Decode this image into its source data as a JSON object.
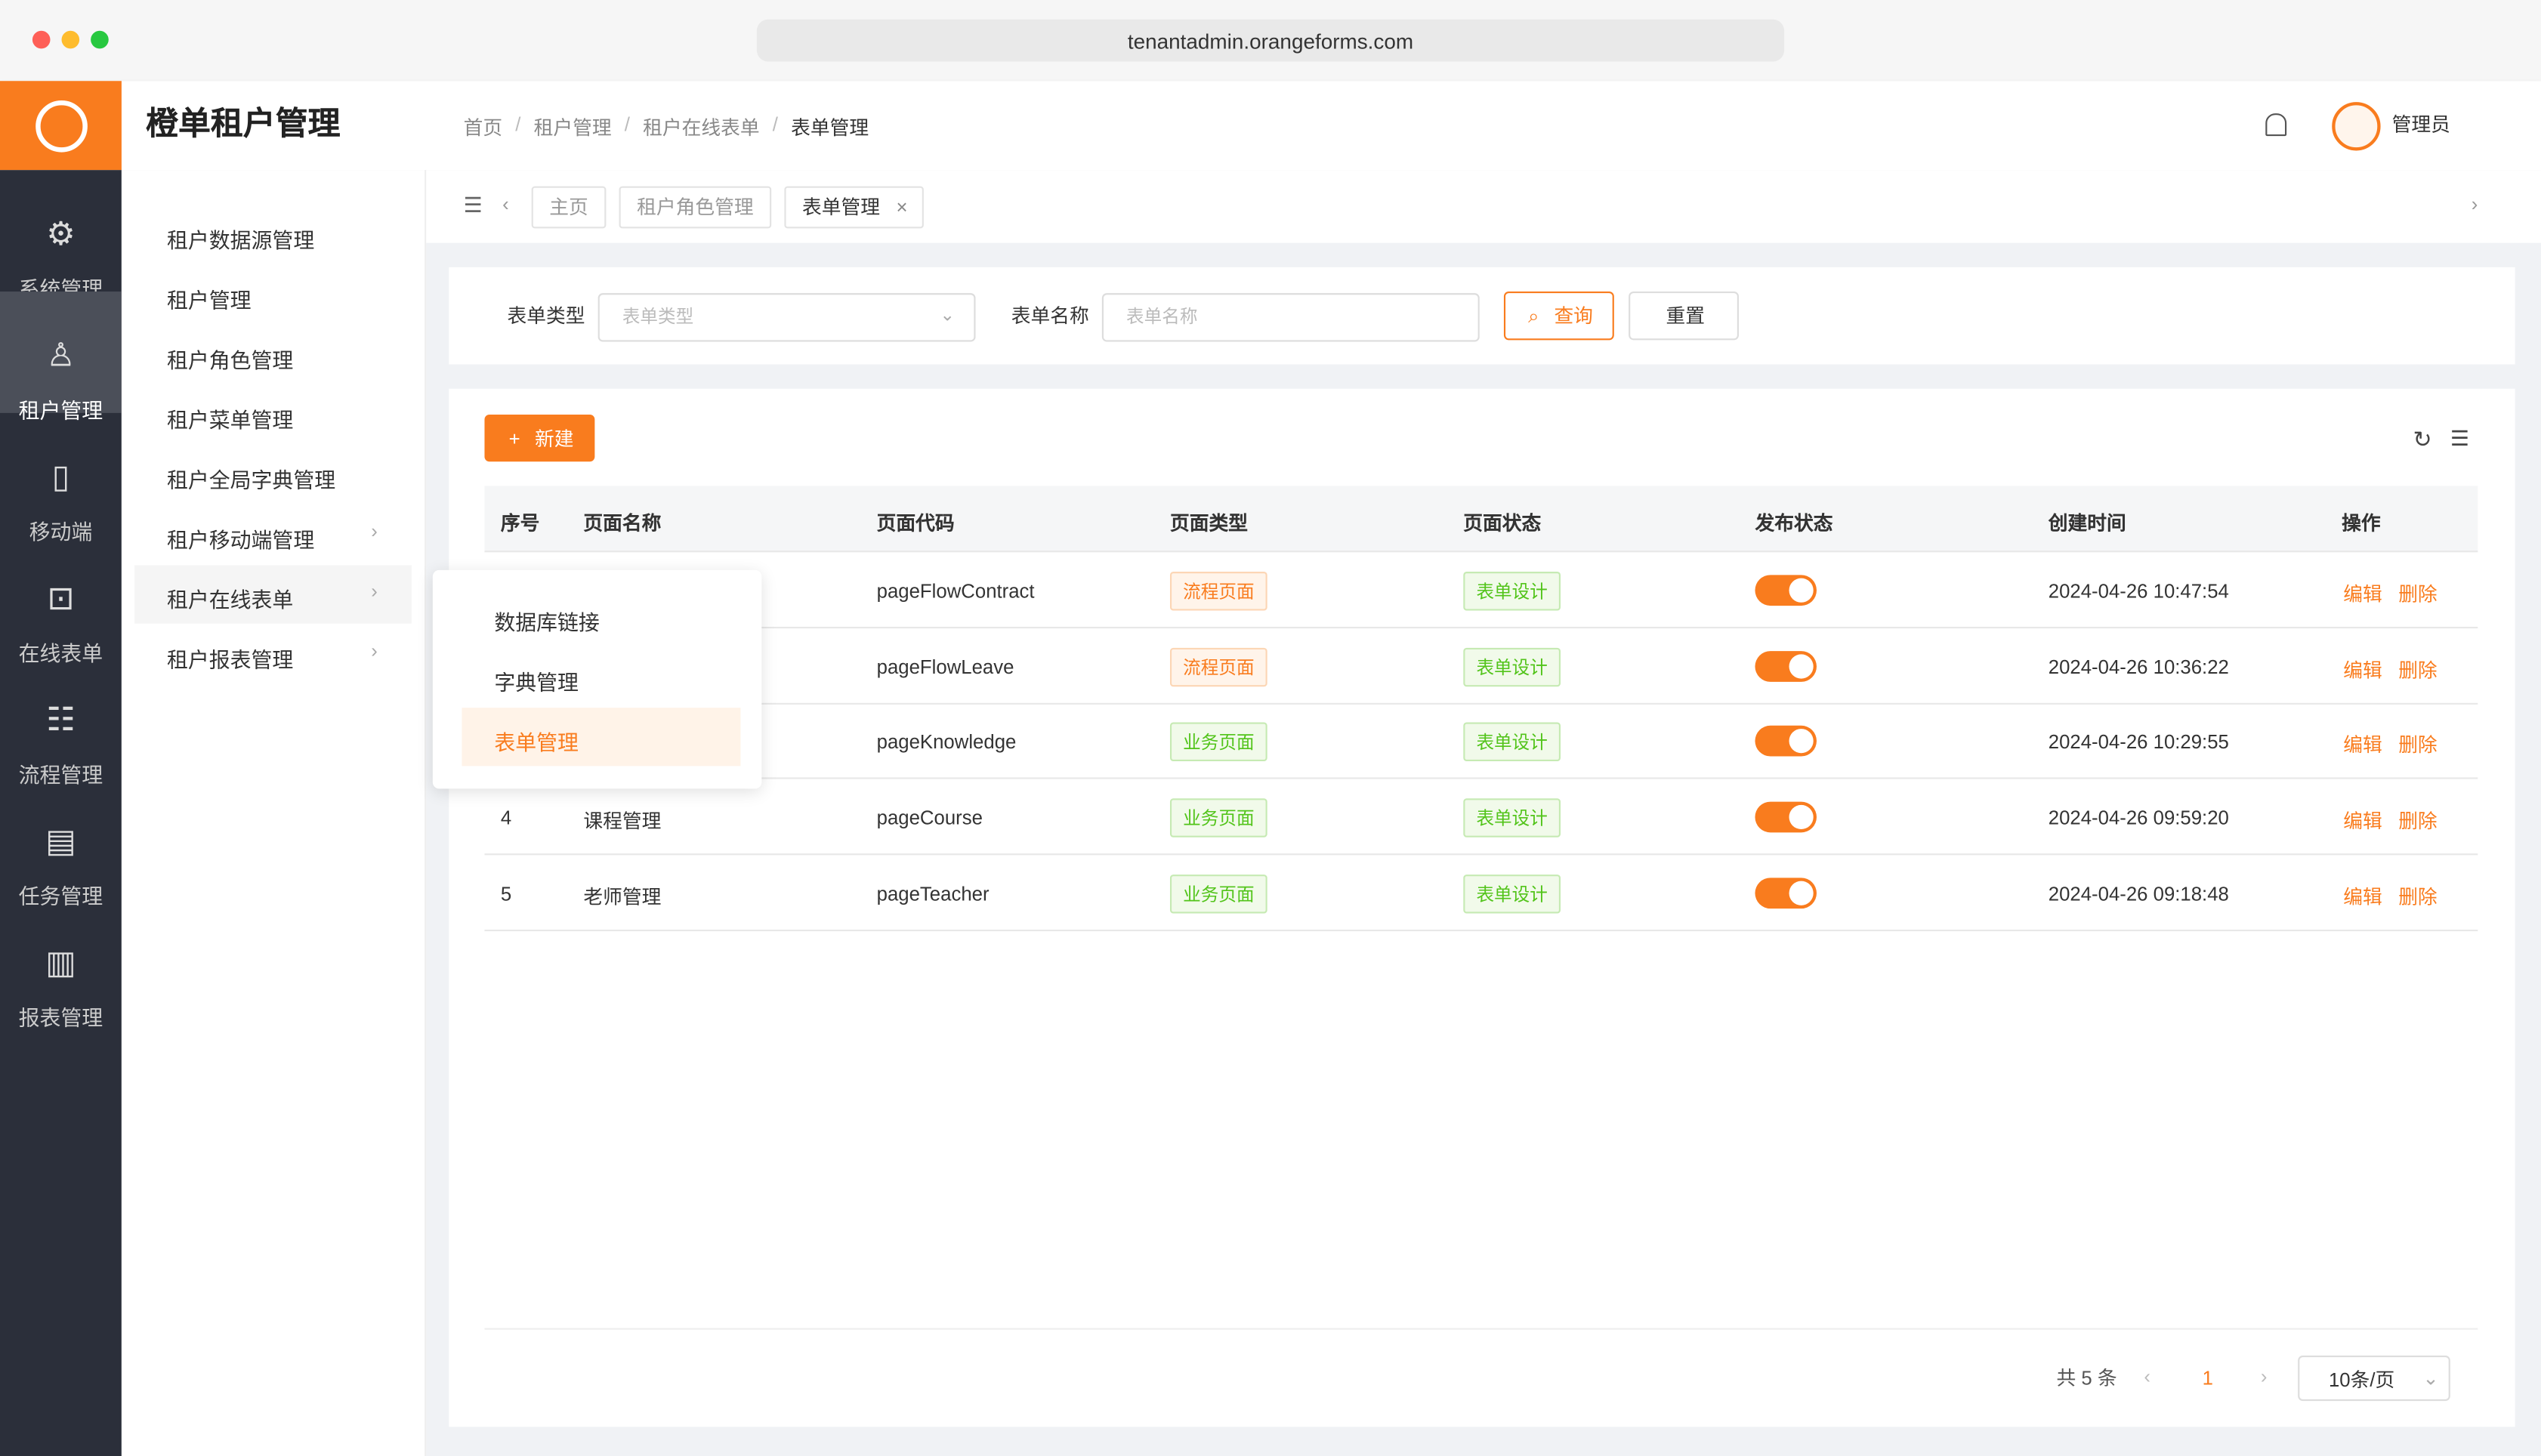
{
  "browser": {
    "url": "tenantadmin.orangeforms.com"
  },
  "header": {
    "title": "橙单租户管理",
    "breadcrumb": [
      "首页",
      "租户管理",
      "租户在线表单",
      "表单管理"
    ],
    "user": "管理员"
  },
  "sidebar": [
    "系统管理",
    "租户管理",
    "移动端",
    "在线表单",
    "流程管理",
    "任务管理",
    "报表管理"
  ],
  "submenu": [
    "租户数据源管理",
    "租户管理",
    "租户角色管理",
    "租户菜单管理",
    "租户全局字典管理",
    "租户移动端管理",
    "租户在线表单",
    "租户报表管理"
  ],
  "popover": [
    "数据库链接",
    "字典管理",
    "表单管理"
  ],
  "tabs": [
    "主页",
    "租户角色管理",
    "表单管理"
  ],
  "filters": {
    "type_label": "表单类型",
    "type_placeholder": "表单类型",
    "name_label": "表单名称",
    "name_placeholder": "表单名称",
    "search": "查询",
    "reset": "重置"
  },
  "new_button": "新建",
  "table": {
    "headers": [
      "序号",
      "页面名称",
      "页面代码",
      "页面类型",
      "页面状态",
      "发布状态",
      "创建时间",
      "操作"
    ],
    "rows": [
      {
        "code": "pageFlowContract",
        "type": "流程页面",
        "status": "表单设计",
        "time": "2024-04-26 10:47:54",
        "actions": [
          "编辑",
          "删除"
        ]
      },
      {
        "code": "pageFlowLeave",
        "type": "流程页面",
        "status": "表单设计",
        "time": "2024-04-26 10:36:22",
        "actions": [
          "编辑",
          "删除"
        ]
      },
      {
        "code": "pageKnowledge",
        "type": "业务页面",
        "status": "表单设计",
        "time": "2024-04-26 10:29:55",
        "actions": [
          "编辑",
          "删除"
        ]
      },
      {
        "seq": "4",
        "name": "课程管理",
        "code": "pageCourse",
        "type": "业务页面",
        "status": "表单设计",
        "time": "2024-04-26 09:59:20",
        "actions": [
          "编辑",
          "删除"
        ]
      },
      {
        "seq": "5",
        "name": "老师管理",
        "code": "pageTeacher",
        "type": "业务页面",
        "status": "表单设计",
        "time": "2024-04-26 09:18:48",
        "actions": [
          "编辑",
          "删除"
        ]
      }
    ]
  },
  "pagination": {
    "total": "共 5 条",
    "page": "1",
    "size": "10条/页"
  }
}
